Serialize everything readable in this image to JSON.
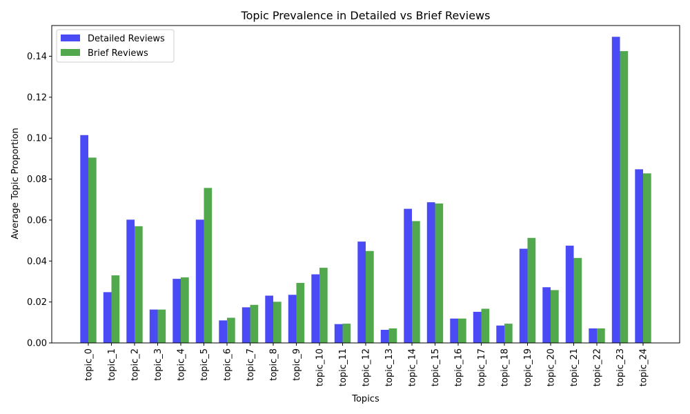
{
  "chart_data": {
    "type": "bar",
    "title": "Topic Prevalence in Detailed vs Brief Reviews",
    "xlabel": "Topics",
    "ylabel": "Average Topic Proportion",
    "ylim": [
      0,
      0.155
    ],
    "yticks": [
      0.0,
      0.02,
      0.04,
      0.06,
      0.08,
      0.1,
      0.12,
      0.14
    ],
    "ytick_labels": [
      "0.00",
      "0.02",
      "0.04",
      "0.06",
      "0.08",
      "0.10",
      "0.12",
      "0.14"
    ],
    "grid": false,
    "legend_position": "top-left",
    "categories": [
      "topic_0",
      "topic_1",
      "topic_2",
      "topic_3",
      "topic_4",
      "topic_5",
      "topic_6",
      "topic_7",
      "topic_8",
      "topic_9",
      "topic_10",
      "topic_11",
      "topic_12",
      "topic_13",
      "topic_14",
      "topic_15",
      "topic_16",
      "topic_17",
      "topic_18",
      "topic_19",
      "topic_20",
      "topic_21",
      "topic_22",
      "topic_23",
      "topic_24"
    ],
    "series": [
      {
        "name": "Detailed Reviews",
        "color": "#4b4bf5",
        "values": [
          0.1015,
          0.0248,
          0.0602,
          0.0163,
          0.0313,
          0.0602,
          0.011,
          0.0174,
          0.0231,
          0.0235,
          0.0335,
          0.0092,
          0.0495,
          0.0064,
          0.0655,
          0.0687,
          0.0119,
          0.0152,
          0.0085,
          0.046,
          0.0272,
          0.0475,
          0.0071,
          0.1495,
          0.0848
        ]
      },
      {
        "name": "Brief Reviews",
        "color": "#51a84d",
        "values": [
          0.0905,
          0.033,
          0.057,
          0.0163,
          0.032,
          0.0757,
          0.0123,
          0.0186,
          0.0201,
          0.0293,
          0.0367,
          0.0094,
          0.0449,
          0.0071,
          0.0595,
          0.0681,
          0.0119,
          0.0167,
          0.0094,
          0.0513,
          0.0258,
          0.0415,
          0.0071,
          0.1425,
          0.0828
        ]
      }
    ]
  }
}
